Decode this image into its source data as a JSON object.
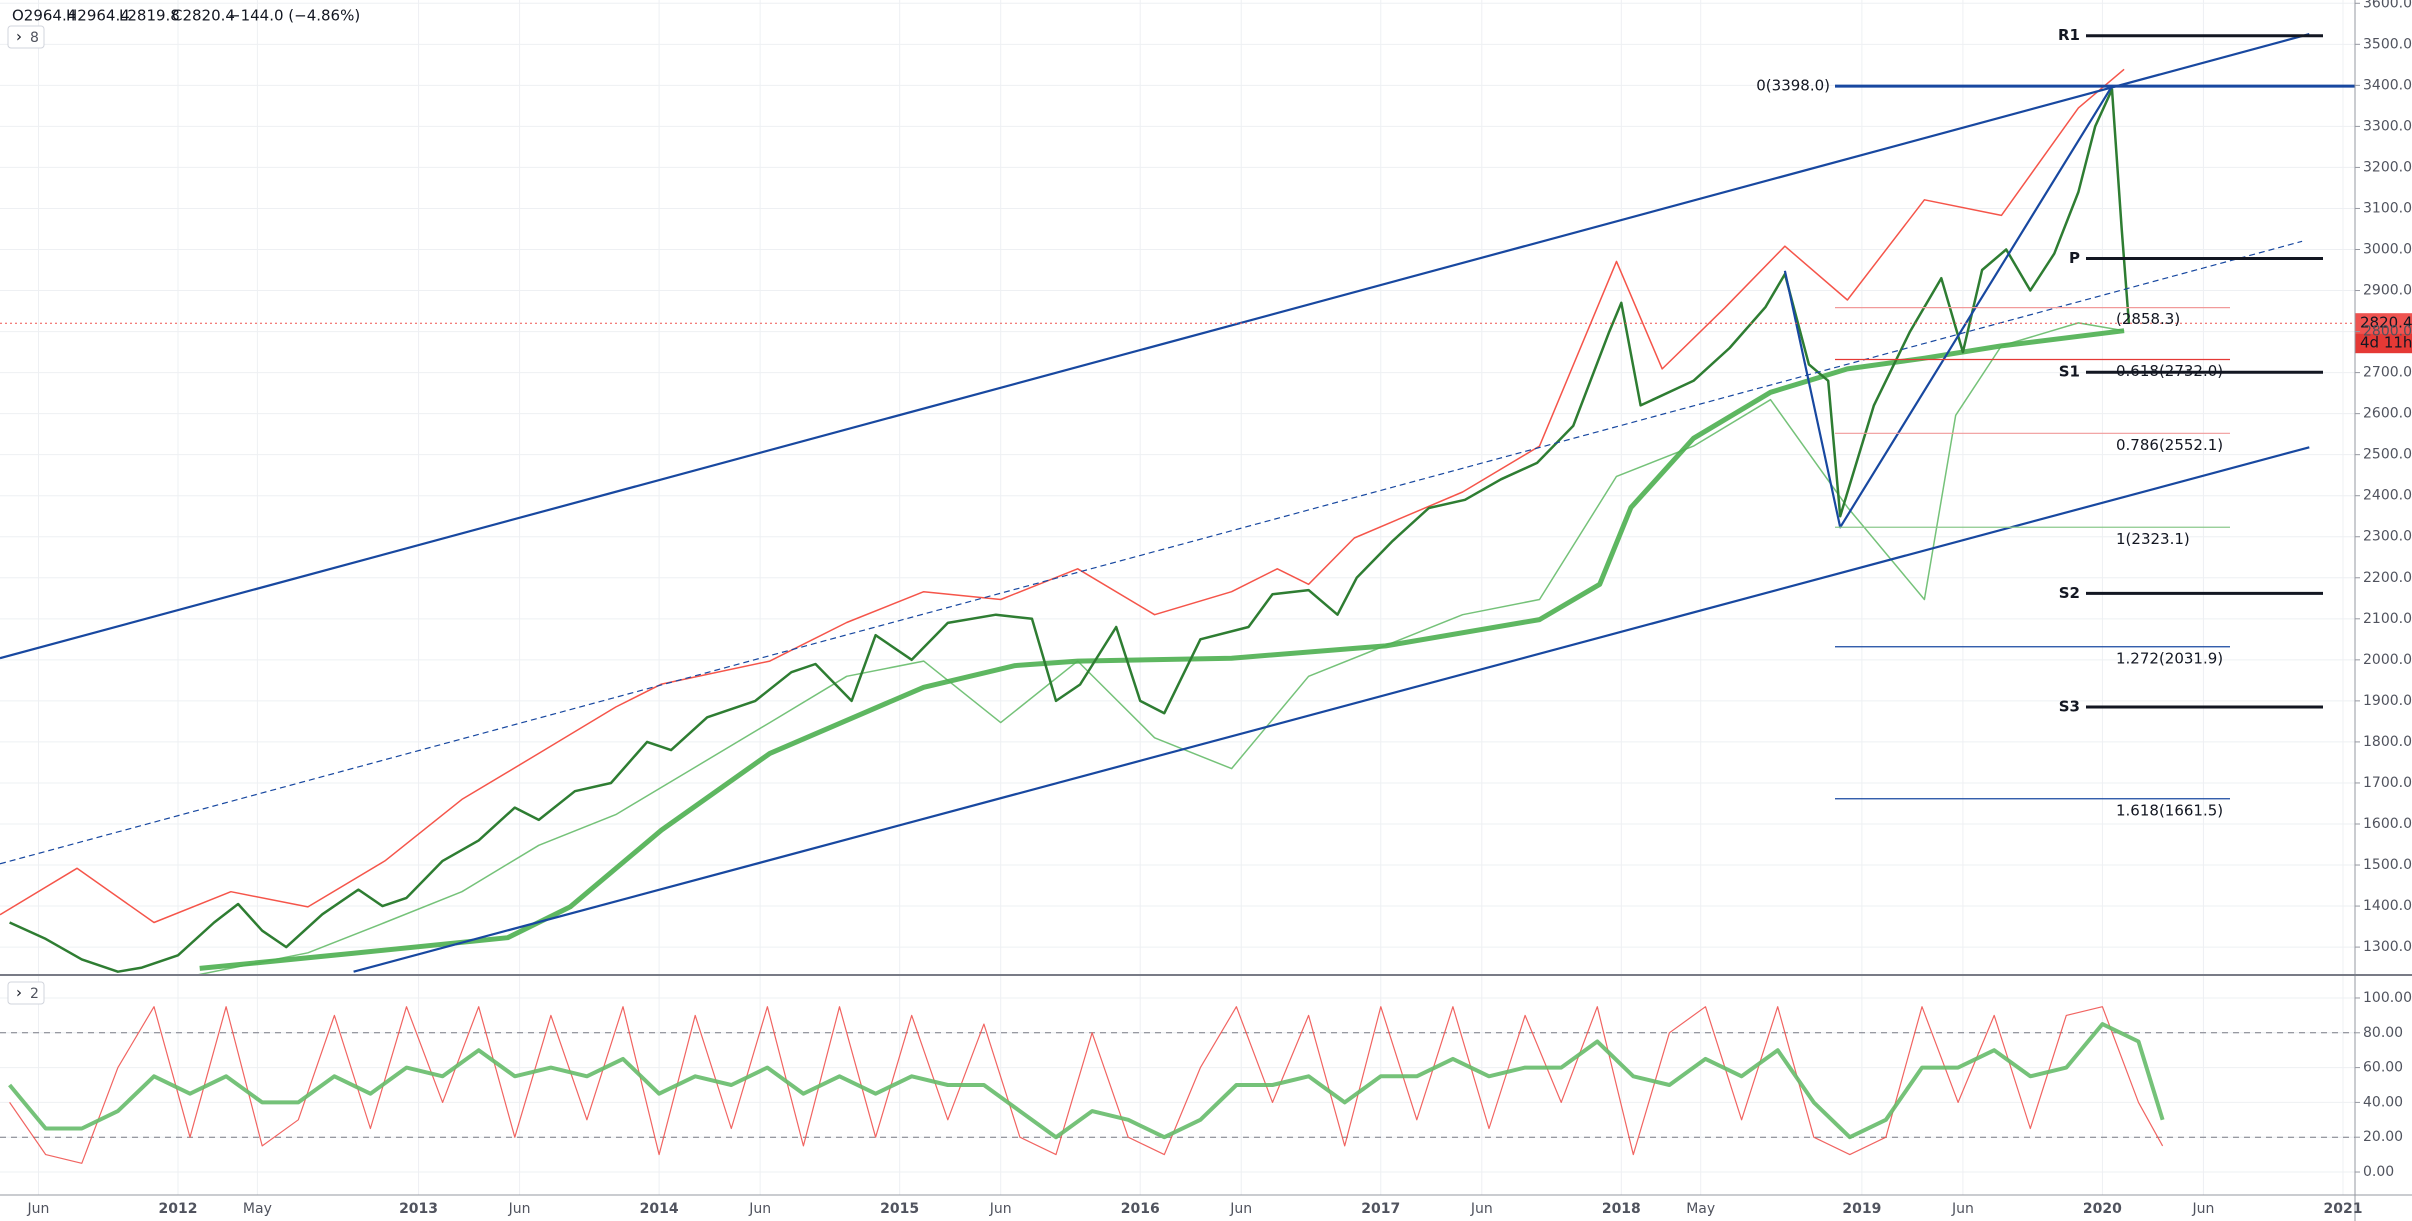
{
  "header": [
    "O2964.4",
    "H2964.4",
    "L2819.8",
    "C2820.4",
    "−144.0 (−4.86%)"
  ],
  "chart_data": [
    {
      "type": "line",
      "pane_button": "8",
      "xlim": [
        2011.26,
        2021.05
      ],
      "ylim": [
        1232,
        3608
      ],
      "grid": true,
      "xticks": [
        {
          "value": 2011.42,
          "label": "Jun"
        },
        {
          "value": 2012,
          "label": "2012"
        },
        {
          "value": 2012.33,
          "label": "May"
        },
        {
          "value": 2013,
          "label": "2013"
        },
        {
          "value": 2013.42,
          "label": "Jun"
        },
        {
          "value": 2014,
          "label": "2014"
        },
        {
          "value": 2014.42,
          "label": "Jun"
        },
        {
          "value": 2015,
          "label": "2015"
        },
        {
          "value": 2015.42,
          "label": "Jun"
        },
        {
          "value": 2016,
          "label": "2016"
        },
        {
          "value": 2016.42,
          "label": "Jun"
        },
        {
          "value": 2017,
          "label": "2017"
        },
        {
          "value": 2017.42,
          "label": "Jun"
        },
        {
          "value": 2018,
          "label": "2018"
        },
        {
          "value": 2018.33,
          "label": "May"
        },
        {
          "value": 2019,
          "label": "2019"
        },
        {
          "value": 2019.42,
          "label": "Jun"
        },
        {
          "value": 2020,
          "label": "2020"
        },
        {
          "value": 2020.42,
          "label": "Jun"
        },
        {
          "value": 2021,
          "label": "2021"
        }
      ],
      "yticks": [
        {
          "value": 3600,
          "label": "3600.0"
        },
        {
          "value": 3500,
          "label": "3500.0"
        },
        {
          "value": 3400,
          "label": "3400.0"
        },
        {
          "value": 3300,
          "label": "3300.0"
        },
        {
          "value": 3200,
          "label": "3200.0"
        },
        {
          "value": 3100,
          "label": "3100.0"
        },
        {
          "value": 3000,
          "label": "3000.0"
        },
        {
          "value": 2900,
          "label": "2900.0"
        },
        {
          "value": 2800,
          "label": "2800.0"
        },
        {
          "value": 2700,
          "label": "2700.0"
        },
        {
          "value": 2600,
          "label": "2600.0"
        },
        {
          "value": 2500,
          "label": "2500.0"
        },
        {
          "value": 2400,
          "label": "2400.0"
        },
        {
          "value": 2300,
          "label": "2300.0"
        },
        {
          "value": 2200,
          "label": "2200.0"
        },
        {
          "value": 2100,
          "label": "2100.0"
        },
        {
          "value": 2000,
          "label": "2000.0"
        },
        {
          "value": 1900,
          "label": "1900.0"
        },
        {
          "value": 1800,
          "label": "1800.0"
        },
        {
          "value": 1700,
          "label": "1700.0"
        },
        {
          "value": 1600,
          "label": "1600.0"
        },
        {
          "value": 1500,
          "label": "1500.0"
        },
        {
          "value": 1400,
          "label": "1400.0"
        },
        {
          "value": 1300,
          "label": "1300.0"
        }
      ],
      "color": "#2e7d32",
      "x": [
        2011.3,
        2011.45,
        2011.6,
        2011.75,
        2011.85,
        2012.0,
        2012.15,
        2012.25,
        2012.35,
        2012.45,
        2012.6,
        2012.75,
        2012.85,
        2012.95,
        2013.1,
        2013.25,
        2013.4,
        2013.5,
        2013.65,
        2013.8,
        2013.95,
        2014.05,
        2014.2,
        2014.4,
        2014.55,
        2014.65,
        2014.8,
        2014.9,
        2015.05,
        2015.2,
        2015.4,
        2015.55,
        2015.65,
        2015.75,
        2015.9,
        2016.0,
        2016.1,
        2016.25,
        2016.45,
        2016.55,
        2016.7,
        2016.82,
        2016.9,
        2017.05,
        2017.2,
        2017.35,
        2017.5,
        2017.65,
        2017.8,
        2017.95,
        2018.0,
        2018.08,
        2018.3,
        2018.45,
        2018.6,
        2018.68,
        2018.78,
        2018.86,
        2018.91,
        2019.05,
        2019.2,
        2019.33,
        2019.42,
        2019.5,
        2019.6,
        2019.7,
        2019.8,
        2019.9,
        2019.97,
        2020.04,
        2020.08,
        2020.11
      ],
      "values": [
        1360,
        1320,
        1270,
        1240,
        1250,
        1280,
        1360,
        1405,
        1340,
        1300,
        1380,
        1440,
        1400,
        1420,
        1510,
        1560,
        1640,
        1610,
        1680,
        1700,
        1800,
        1780,
        1860,
        1900,
        1970,
        1990,
        1900,
        2060,
        2000,
        2090,
        2110,
        2100,
        1900,
        1940,
        2080,
        1900,
        1870,
        2050,
        2080,
        2160,
        2170,
        2110,
        2200,
        2290,
        2370,
        2390,
        2440,
        2480,
        2570,
        2800,
        2870,
        2620,
        2680,
        2760,
        2860,
        2940,
        2720,
        2680,
        2350,
        2620,
        2800,
        2930,
        2750,
        2950,
        3000,
        2900,
        2990,
        3140,
        3300,
        3390,
        3050,
        2820.4
      ],
      "series": [
        {
          "color": "#f44336",
          "line_width": 1.5,
          "x": [
            2011.26,
            2011.58,
            2011.9,
            2012.22,
            2012.54,
            2012.86,
            2013.18,
            2013.5,
            2013.82,
            2014.01,
            2014.46,
            2014.78,
            2015.1,
            2015.42,
            2015.74,
            2016.06,
            2016.38,
            2016.57,
            2016.7,
            2016.89,
            2017.34,
            2017.66,
            2017.98,
            2018.17,
            2018.43,
            2018.68,
            2018.94,
            2019.26,
            2019.58,
            2019.9,
            2020.09
          ],
          "values": [
            1379,
            1492,
            1360,
            1435,
            1398,
            1510,
            1660,
            1772,
            1885,
            1941,
            1997,
            2091,
            2166,
            2147,
            2222,
            2110,
            2166,
            2222,
            2184,
            2297,
            2409,
            2521,
            2971,
            2709,
            2858,
            3008,
            2877,
            3121,
            3083,
            3345,
            3439
          ]
        },
        {
          "color": "#66bb6a",
          "line_width": 1.5,
          "x": [
            2011.9,
            2012.54,
            2012.86,
            2013.18,
            2013.5,
            2013.82,
            2014.14,
            2014.46,
            2014.78,
            2015.1,
            2015.42,
            2015.74,
            2016.06,
            2016.38,
            2016.7,
            2017.02,
            2017.34,
            2017.66,
            2017.98,
            2018.3,
            2018.62,
            2018.94,
            2019.26,
            2019.39,
            2019.58,
            2019.9,
            2020.09
          ],
          "values": [
            1211,
            1286,
            1360,
            1435,
            1548,
            1623,
            1735,
            1847,
            1960,
            1997,
            1847,
            1997,
            1810,
            1735,
            1960,
            2035,
            2110,
            2147,
            2447,
            2521,
            2634,
            2372,
            2147,
            2596,
            2765,
            2821,
            2802
          ]
        },
        {
          "color": "#4caf50",
          "line_width": 5,
          "x": [
            2012.09,
            2012.73,
            2013.37,
            2013.63,
            2014.01,
            2014.46,
            2015.1,
            2015.48,
            2015.74,
            2016.38,
            2017.02,
            2017.66,
            2017.91,
            2018.04,
            2018.3,
            2018.62,
            2018.94,
            2019.26,
            2019.58,
            2020.09
          ],
          "values": [
            1248,
            1285,
            1323,
            1398,
            1585,
            1772,
            1933,
            1986,
            1997,
            2004,
            2034,
            2098,
            2184,
            2371,
            2540,
            2652,
            2709,
            2735,
            2765,
            2802
          ]
        }
      ],
      "trendlines": [
        {
          "color": "#1848a0",
          "x": [
            2011.26,
            2020.86
          ],
          "values": [
            2004,
            3525
          ]
        },
        {
          "color": "#1848a0",
          "x": [
            2012.73,
            2020.86
          ],
          "values": [
            1240,
            2518
          ]
        },
        {
          "color": "#1848a0",
          "dashed": true,
          "x": [
            2011.26,
            2020.83
          ],
          "values": [
            1503,
            3020
          ]
        },
        {
          "color": "#1848a0",
          "x": [
            2018.68,
            2018.91,
            2020.04
          ],
          "values": [
            2948,
            2323,
            3398
          ]
        }
      ],
      "fib_levels": [
        {
          "label": "0(3398.0)",
          "value": 3398,
          "color": "#1848a0",
          "label_side": "left"
        },
        {
          "label": "(2858.3)",
          "value": 2858.3,
          "color": "#f19a9a"
        },
        {
          "label": "0.618(2732.0)",
          "value": 2732,
          "color": "#e53935"
        },
        {
          "label": "0.786(2552.1)",
          "value": 2552.1,
          "color": "#f19a9a"
        },
        {
          "label": "1(2323.1)",
          "value": 2323.1,
          "color": "#8bc98d"
        },
        {
          "label": "1.272(2031.9)",
          "value": 2031.9,
          "color": "#1848a0"
        },
        {
          "label": "1.618(1661.5)",
          "value": 1661.5,
          "color": "#1848a0"
        }
      ],
      "pivots": [
        {
          "label": "R1",
          "value": 3521
        },
        {
          "label": "P",
          "value": 2978
        },
        {
          "label": "S1",
          "value": 2701
        },
        {
          "label": "S2",
          "value": 2162
        },
        {
          "label": "S3",
          "value": 1885
        }
      ],
      "last_price": 2820.4,
      "countdown": "4d 11h"
    },
    {
      "type": "line",
      "pane_button": "2",
      "xlim": [
        2011.26,
        2021.05
      ],
      "ylim": [
        -13.2,
        113.2
      ],
      "yticks": [
        {
          "value": 100,
          "label": "100.00"
        },
        {
          "value": 80,
          "label": "80.00"
        },
        {
          "value": 60,
          "label": "60.00"
        },
        {
          "value": 40,
          "label": "40.00"
        },
        {
          "value": 20,
          "label": "20.00"
        },
        {
          "value": 0,
          "label": "0.00"
        }
      ],
      "hlines": [
        80,
        20
      ],
      "x": [
        2011.3,
        2011.45,
        2011.6,
        2011.75,
        2011.9,
        2012.05,
        2012.2,
        2012.35,
        2012.5,
        2012.65,
        2012.8,
        2012.95,
        2013.1,
        2013.25,
        2013.4,
        2013.55,
        2013.7,
        2013.85,
        2014.0,
        2014.15,
        2014.3,
        2014.45,
        2014.6,
        2014.75,
        2014.9,
        2015.05,
        2015.2,
        2015.35,
        2015.5,
        2015.65,
        2015.8,
        2015.95,
        2016.1,
        2016.25,
        2016.4,
        2016.55,
        2016.7,
        2016.85,
        2017.0,
        2017.15,
        2017.3,
        2017.45,
        2017.6,
        2017.75,
        2017.9,
        2018.05,
        2018.2,
        2018.35,
        2018.5,
        2018.65,
        2018.8,
        2018.95,
        2019.1,
        2019.25,
        2019.4,
        2019.55,
        2019.7,
        2019.85,
        2020.0,
        2020.15,
        2020.25
      ],
      "series": [
        {
          "color": "#ef5350",
          "line_width": 1.2,
          "values": [
            40,
            10,
            5,
            60,
            95,
            20,
            95,
            15,
            30,
            90,
            25,
            95,
            40,
            95,
            20,
            90,
            30,
            95,
            10,
            90,
            25,
            95,
            15,
            95,
            20,
            90,
            30,
            85,
            20,
            10,
            80,
            20,
            10,
            60,
            95,
            40,
            90,
            15,
            95,
            30,
            95,
            25,
            90,
            40,
            95,
            10,
            80,
            95,
            30,
            95,
            20,
            10,
            20,
            95,
            40,
            90,
            25,
            90,
            95,
            40,
            15
          ]
        },
        {
          "color": "#66bb6a",
          "line_width": 4,
          "values": [
            50,
            25,
            25,
            35,
            55,
            45,
            55,
            40,
            40,
            55,
            45,
            60,
            55,
            70,
            55,
            60,
            55,
            65,
            45,
            55,
            50,
            60,
            45,
            55,
            45,
            55,
            50,
            50,
            35,
            20,
            35,
            30,
            20,
            30,
            50,
            50,
            55,
            40,
            55,
            55,
            65,
            55,
            60,
            60,
            75,
            55,
            50,
            65,
            55,
            70,
            40,
            20,
            30,
            60,
            60,
            70,
            55,
            60,
            85,
            75,
            30
          ]
        }
      ]
    }
  ]
}
